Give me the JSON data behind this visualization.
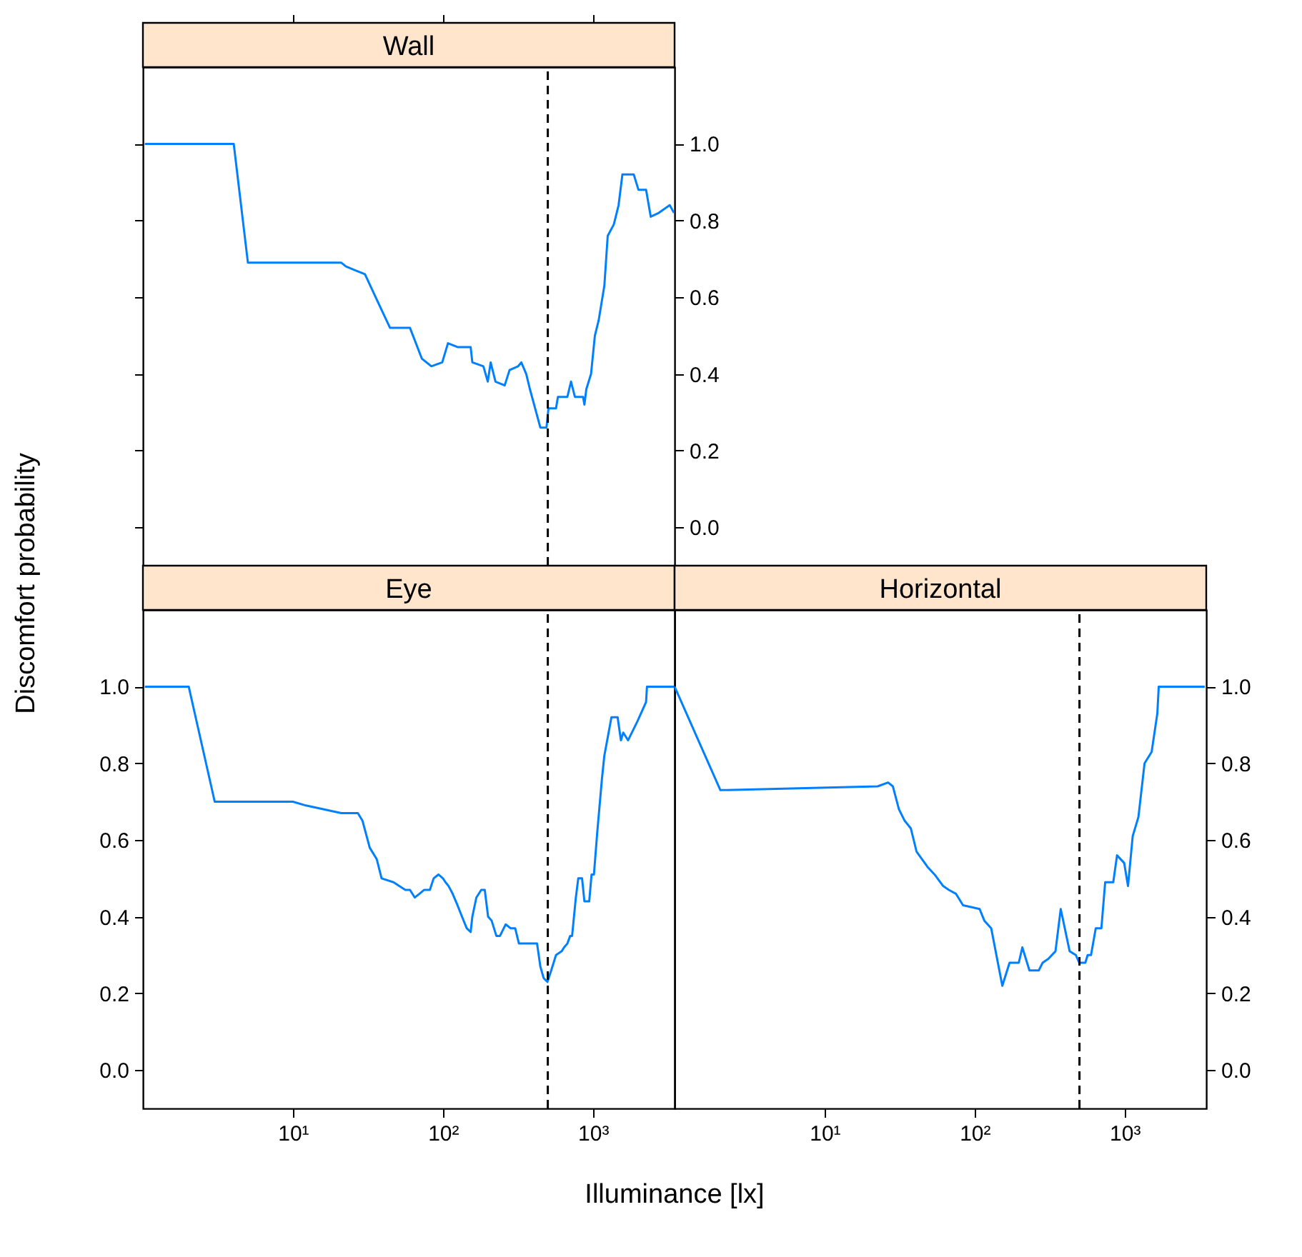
{
  "chart_data": [
    {
      "type": "line",
      "title": "Wall",
      "log": "x",
      "grid": false,
      "tick_labels": "y",
      "xlim": [
        1,
        3500
      ],
      "ylim": [
        -0.1,
        1.2
      ],
      "xticks": [
        {
          "value": 10,
          "label": null
        },
        {
          "value": 100,
          "label": null
        },
        {
          "value": 1000,
          "label": null
        }
      ],
      "yticks": [
        {
          "value": 0,
          "label": "0.0"
        },
        {
          "value": 0.2,
          "label": "0.2"
        },
        {
          "value": 0.4,
          "label": "0.4"
        },
        {
          "value": 0.6,
          "label": "0.6"
        },
        {
          "value": 0.8,
          "label": "0.8"
        },
        {
          "value": 1,
          "label": "1.0"
        }
      ],
      "ref_lines": [
        {
          "axis": "x",
          "value": 500,
          "color": "#000000",
          "line_style": "dashed"
        }
      ],
      "x": [
        1.03,
        4.03,
        5.01,
        21,
        22.6,
        26.1,
        30.2,
        33.7,
        37.6,
        44.4,
        60.3,
        72.3,
        83.7,
        98.9,
        108,
        125,
        153,
        157,
        186,
        199,
        208,
        224,
        258,
        278,
        317,
        333,
        359,
        380,
        446,
        490,
        505,
        567,
        584,
        675,
        714,
        758,
        859,
        877,
        903,
        971,
        1030,
        1092,
        1191,
        1254,
        1378,
        1482,
        1571,
        1871,
        2011,
        2260,
        2428,
        2746,
        3248,
        3467
      ],
      "series": [
        {
          "color": "#0080ff",
          "line_style": "solid",
          "values": [
            1.0,
            1.0,
            0.69,
            0.69,
            0.68,
            0.67,
            0.66,
            0.62,
            0.58,
            0.52,
            0.52,
            0.44,
            0.42,
            0.43,
            0.48,
            0.47,
            0.47,
            0.43,
            0.42,
            0.38,
            0.43,
            0.38,
            0.37,
            0.41,
            0.42,
            0.43,
            0.4,
            0.36,
            0.26,
            0.26,
            0.31,
            0.31,
            0.34,
            0.34,
            0.38,
            0.34,
            0.34,
            0.32,
            0.36,
            0.4,
            0.5,
            0.54,
            0.63,
            0.76,
            0.79,
            0.84,
            0.92,
            0.92,
            0.88,
            0.88,
            0.81,
            0.82,
            0.84,
            0.82
          ]
        }
      ]
    },
    {
      "type": "line",
      "title": "Eye",
      "xlabel": "Illuminance [lx]",
      "ylabel": "Discomfort probability",
      "log": "x",
      "grid": false,
      "xlim": [
        1,
        3500
      ],
      "ylim": [
        -0.1,
        1.2
      ],
      "xticks": [
        {
          "value": 10,
          "label": "10¹"
        },
        {
          "value": 100,
          "label": "10²"
        },
        {
          "value": 1000,
          "label": "10³"
        }
      ],
      "yticks": [
        {
          "value": 0,
          "label": "0.0"
        },
        {
          "value": 0.2,
          "label": "0.2"
        },
        {
          "value": 0.4,
          "label": "0.4"
        },
        {
          "value": 0.6,
          "label": "0.6"
        },
        {
          "value": 0.8,
          "label": "0.8"
        },
        {
          "value": 1,
          "label": "1.0"
        }
      ],
      "ref_lines": [
        {
          "axis": "x",
          "value": 500,
          "color": "#000000",
          "line_style": "dashed"
        }
      ],
      "x": [
        1.03,
        2.02,
        3.01,
        10,
        12.2,
        21,
        27.1,
        29.1,
        32.5,
        36.2,
        39,
        46.8,
        56.1,
        60.3,
        64.9,
        69.8,
        75,
        81.8,
        86.7,
        93.3,
        100,
        104,
        109,
        116,
        125,
        134,
        144,
        153,
        157,
        167,
        180,
        190,
        200,
        211,
        227,
        240,
        262,
        282,
        303,
        321,
        346,
        424,
        446,
        469,
        497,
        527,
        567,
        619,
        642,
        675,
        705,
        726,
        769,
        798,
        846,
        877,
        944,
        979,
        1015,
        1068,
        1148,
        1191,
        1328,
        1460,
        1536,
        1592,
        1713,
        1982,
        2260,
        2291,
        3467
      ],
      "series": [
        {
          "color": "#0080ff",
          "line_style": "solid",
          "values": [
            1.0,
            1.0,
            0.7,
            0.7,
            0.69,
            0.67,
            0.67,
            0.65,
            0.58,
            0.55,
            0.5,
            0.49,
            0.47,
            0.47,
            0.45,
            0.46,
            0.47,
            0.47,
            0.5,
            0.51,
            0.5,
            0.49,
            0.48,
            0.46,
            0.43,
            0.4,
            0.37,
            0.36,
            0.4,
            0.45,
            0.47,
            0.47,
            0.4,
            0.39,
            0.35,
            0.35,
            0.38,
            0.37,
            0.37,
            0.33,
            0.33,
            0.33,
            0.27,
            0.24,
            0.23,
            0.26,
            0.3,
            0.31,
            0.32,
            0.33,
            0.35,
            0.35,
            0.45,
            0.5,
            0.5,
            0.44,
            0.44,
            0.51,
            0.51,
            0.62,
            0.76,
            0.82,
            0.92,
            0.92,
            0.86,
            0.88,
            0.86,
            0.91,
            0.96,
            1.0,
            1.0
          ]
        }
      ]
    },
    {
      "type": "line",
      "title": "Horizontal",
      "log": "x",
      "grid": false,
      "xlim": [
        1,
        3500
      ],
      "ylim": [
        -0.1,
        1.2
      ],
      "xticks": [
        {
          "value": 10,
          "label": "10¹"
        },
        {
          "value": 100,
          "label": "10²"
        },
        {
          "value": 1000,
          "label": "10³"
        }
      ],
      "yticks": [
        {
          "value": 0,
          "label": "0.0"
        },
        {
          "value": 0.2,
          "label": "0.2"
        },
        {
          "value": 0.4,
          "label": "0.4"
        },
        {
          "value": 0.6,
          "label": "0.6"
        },
        {
          "value": 0.8,
          "label": "0.8"
        },
        {
          "value": 1,
          "label": "1.0"
        }
      ],
      "ref_lines": [
        {
          "axis": "x",
          "value": 500,
          "color": "#000000",
          "line_style": "dashed"
        }
      ],
      "x": [
        1.0,
        2.02,
        22.6,
        26.5,
        28.5,
        31.3,
        34.2,
        37.6,
        41,
        48.5,
        54.1,
        61.7,
        67.3,
        75,
        83.7,
        108,
        116,
        129,
        153,
        171,
        197,
        208,
        232,
        268,
        284,
        310,
        346,
        375,
        430,
        473,
        498,
        547,
        567,
        597,
        642,
        700,
        742,
        840,
        890,
        993,
        1053,
        1132,
        1236,
        1358,
        1514,
        1652,
        1688,
        3420
      ],
      "series": [
        {
          "color": "#0080ff",
          "line_style": "solid",
          "values": [
            1.0,
            0.73,
            0.74,
            0.75,
            0.74,
            0.68,
            0.65,
            0.63,
            0.57,
            0.53,
            0.51,
            0.48,
            0.47,
            0.46,
            0.43,
            0.42,
            0.39,
            0.37,
            0.22,
            0.28,
            0.28,
            0.32,
            0.26,
            0.26,
            0.28,
            0.29,
            0.31,
            0.42,
            0.31,
            0.3,
            0.28,
            0.28,
            0.3,
            0.3,
            0.37,
            0.37,
            0.49,
            0.49,
            0.56,
            0.54,
            0.48,
            0.61,
            0.66,
            0.8,
            0.83,
            0.93,
            1.0,
            1.0
          ]
        }
      ]
    }
  ]
}
